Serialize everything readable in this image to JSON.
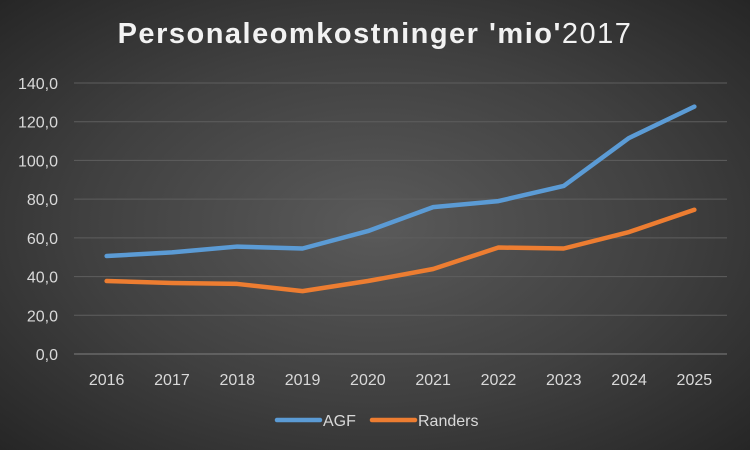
{
  "chart_data": {
    "type": "line",
    "title": "Personaleomkostninger 'mio'",
    "title_suffix": "2017",
    "xlabel": "",
    "ylabel": "",
    "ylim": [
      0,
      140
    ],
    "yticks": [
      "0,0",
      "20,0",
      "40,0",
      "60,0",
      "80,0",
      "100,0",
      "120,0",
      "140,0"
    ],
    "categories": [
      "2016",
      "2017",
      "2018",
      "2019",
      "2020",
      "2021",
      "2022",
      "2023",
      "2024",
      "2025"
    ],
    "grid": true,
    "legend_position": "bottom",
    "series": [
      {
        "name": "AGF",
        "color": "#5b9bd5",
        "values": [
          50.6,
          52.5,
          55.5,
          54.5,
          63.5,
          75.9,
          79.0,
          86.8,
          111.6,
          127.8
        ]
      },
      {
        "name": "Randers",
        "color": "#ed7d31",
        "values": [
          37.7,
          36.7,
          36.2,
          32.5,
          37.7,
          43.9,
          55.0,
          54.5,
          63.0,
          74.5
        ]
      }
    ]
  }
}
